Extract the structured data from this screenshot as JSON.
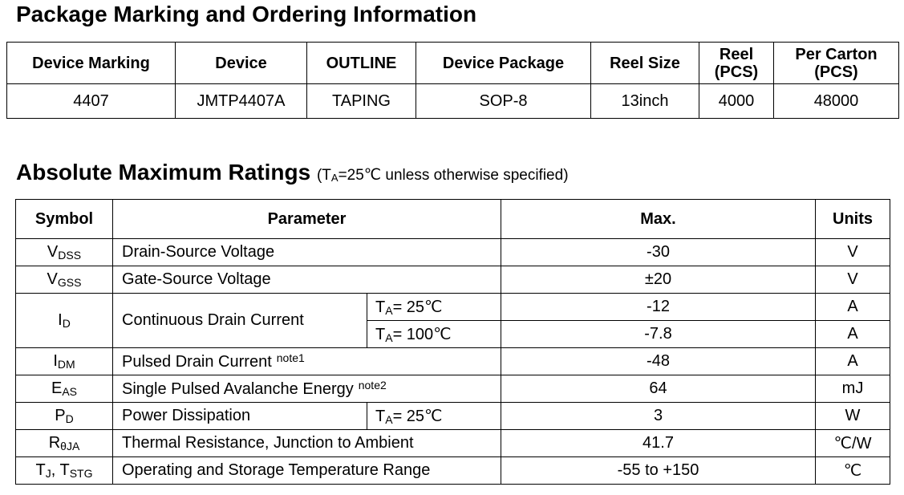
{
  "ordering": {
    "title": "Package Marking and Ordering Information",
    "headers": [
      "Device Marking",
      "Device",
      "OUTLINE",
      "Device Package",
      "Reel Size",
      "Reel (PCS)",
      "Per Carton (PCS)"
    ],
    "row": [
      "4407",
      "JMTP4407A",
      "TAPING",
      "SOP-8",
      "13inch",
      "4000",
      "48000"
    ]
  },
  "ratings": {
    "title": "Absolute Maximum Ratings",
    "condition_prefix": "(T",
    "condition_sub": "A",
    "condition_suffix": "=25℃ unless otherwise specified)",
    "headers": {
      "symbol": "Symbol",
      "parameter": "Parameter",
      "max": "Max.",
      "units": "Units"
    },
    "rows": {
      "vdss": {
        "sym": "V",
        "sub": "DSS",
        "param": "Drain-Source Voltage",
        "max": "-30",
        "unit": "V"
      },
      "vgss": {
        "sym": "V",
        "sub": "GSS",
        "param": "Gate-Source Voltage",
        "max": "±20",
        "unit": "V"
      },
      "id": {
        "sym": "I",
        "sub": "D",
        "param": "Continuous Drain Current",
        "cond1_pre": "T",
        "cond1_sub": "A",
        "cond1_post": "= 25℃",
        "max1": "-12",
        "unit1": "A",
        "cond2_pre": "T",
        "cond2_sub": "A",
        "cond2_post": "= 100℃",
        "max2": "-7.8",
        "unit2": "A"
      },
      "idm": {
        "sym": "I",
        "sub": "DM",
        "param": "Pulsed Drain Current",
        "note": "note1",
        "max": "-48",
        "unit": "A"
      },
      "eas": {
        "sym": "E",
        "sub": "AS",
        "param": "Single Pulsed Avalanche Energy",
        "note": "note2",
        "max": "64",
        "unit": "mJ"
      },
      "pd": {
        "sym": "P",
        "sub": "D",
        "param": "Power Dissipation",
        "cond_pre": "T",
        "cond_sub": "A",
        "cond_post": "= 25℃",
        "max": "3",
        "unit": "W"
      },
      "rtheta": {
        "sym": "R",
        "sub": "θJA",
        "param": "Thermal Resistance, Junction to Ambient",
        "max": "41.7",
        "unit": "℃/W"
      },
      "tj": {
        "sym1": "T",
        "sub1": "J",
        "sep": ", T",
        "sub2": "STG",
        "param": "Operating and Storage Temperature Range",
        "max": "-55 to +150",
        "unit": "℃"
      }
    }
  }
}
